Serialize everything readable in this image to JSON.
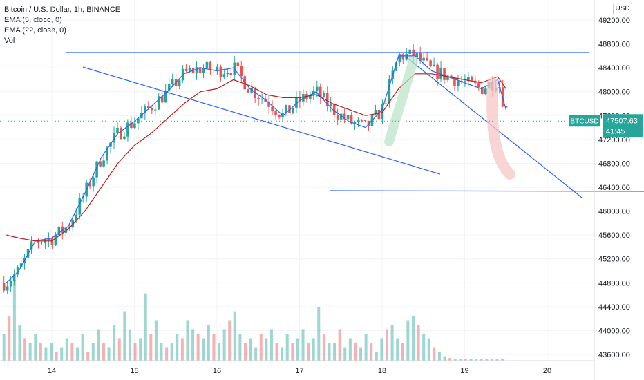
{
  "header": {
    "title": "Bitcoin / U.S. Dollar, 1h, BINANCE",
    "indicators": [
      "EMA (5, close, 0)",
      "EMA (22, close, 0)",
      "Vol"
    ],
    "currency_button": "USD"
  },
  "price_tag": {
    "symbol": "BTCUSD",
    "price": "47507.63",
    "countdown": "41:45",
    "color": "#26a69a"
  },
  "colors": {
    "up": "#26a69a",
    "down": "#ef5350",
    "ema5": "#2962ff",
    "ema22": "#b71c1c",
    "trendline": "#2962ff",
    "grid": "#f0f3fa"
  },
  "chart_data": {
    "type": "candlestick",
    "title": "Bitcoin / U.S. Dollar, 1h, BINANCE",
    "x_ticks": [
      "14",
      "15",
      "16",
      "17",
      "18",
      "19",
      "20"
    ],
    "y_ticks": [
      43600,
      44000,
      44400,
      44800,
      45200,
      45600,
      46000,
      46400,
      46800,
      47200,
      47600,
      48000,
      48400,
      48800,
      49200
    ],
    "ylim": [
      43450,
      49350
    ],
    "xlim": [
      13.4,
      20.4
    ],
    "last_price": 47507.63,
    "series": [
      {
        "name": "EMA (5, close, 0)",
        "x": [
          13.45,
          13.6,
          13.8,
          14.0,
          14.2,
          14.4,
          14.6,
          14.8,
          15.0,
          15.2,
          15.4,
          15.6,
          15.8,
          16.0,
          16.2,
          16.4,
          16.6,
          16.8,
          17.0,
          17.2,
          17.4,
          17.6,
          17.8,
          18.0,
          18.2,
          18.4,
          18.6,
          18.8,
          19.0,
          19.2,
          19.4,
          19.5
        ],
        "y": [
          44800,
          45000,
          45500,
          45550,
          45750,
          46300,
          46900,
          47300,
          47500,
          47750,
          48000,
          48300,
          48400,
          48350,
          48400,
          48050,
          47850,
          47600,
          47850,
          48000,
          47700,
          47500,
          47400,
          47700,
          48600,
          48600,
          48350,
          48250,
          48150,
          48050,
          48200,
          47700
        ]
      },
      {
        "name": "EMA (22, close, 0)",
        "x": [
          13.45,
          13.6,
          13.8,
          14.0,
          14.2,
          14.4,
          14.6,
          14.8,
          15.0,
          15.2,
          15.4,
          15.6,
          15.8,
          16.0,
          16.2,
          16.4,
          16.6,
          16.8,
          17.0,
          17.2,
          17.4,
          17.6,
          17.8,
          18.0,
          18.2,
          18.4,
          18.6,
          18.8,
          19.0,
          19.2,
          19.4,
          19.5
        ],
        "y": [
          45600,
          45550,
          45500,
          45500,
          45700,
          46000,
          46400,
          46800,
          47100,
          47300,
          47550,
          47800,
          48000,
          48050,
          48200,
          48100,
          47950,
          47900,
          47900,
          47950,
          47800,
          47700,
          47600,
          47650,
          48050,
          48300,
          48300,
          48250,
          48200,
          48150,
          48250,
          48050
        ]
      }
    ],
    "volume_levels": [
      0.3,
      0.5,
      0.9,
      0.4,
      0.25,
      0.2,
      0.3,
      0.2,
      0.15,
      0.2,
      0.1,
      0.15,
      0.25,
      0.2,
      0.15,
      0.3,
      0.1,
      0.2,
      0.35,
      0.2,
      0.15,
      0.4,
      0.25,
      0.55,
      0.35,
      0.2,
      0.25,
      0.75,
      0.3,
      0.45,
      0.2,
      0.15,
      0.2,
      0.3,
      0.25,
      0.45,
      0.35,
      0.3,
      0.25,
      0.4,
      0.3,
      0.2,
      0.35,
      0.45,
      0.55,
      0.3,
      0.2,
      0.25,
      0.15,
      0.3,
      0.25,
      0.35,
      0.2,
      0.15,
      0.3,
      0.2,
      0.25,
      0.35,
      0.2,
      0.25,
      0.6,
      0.3,
      0.2,
      0.2,
      0.35,
      0.15,
      0.25,
      0.2,
      0.15,
      0.3,
      0.2,
      0.1,
      0.25,
      0.35,
      0.4,
      0.25,
      0.2,
      0.45,
      0.5,
      0.4,
      0.3,
      0.25,
      0.15,
      0.1,
      0.05,
      0.03,
      0.02,
      0.02,
      0.02,
      0.02,
      0.02,
      0.02,
      0.02,
      0.02,
      0.02,
      0.02
    ]
  }
}
